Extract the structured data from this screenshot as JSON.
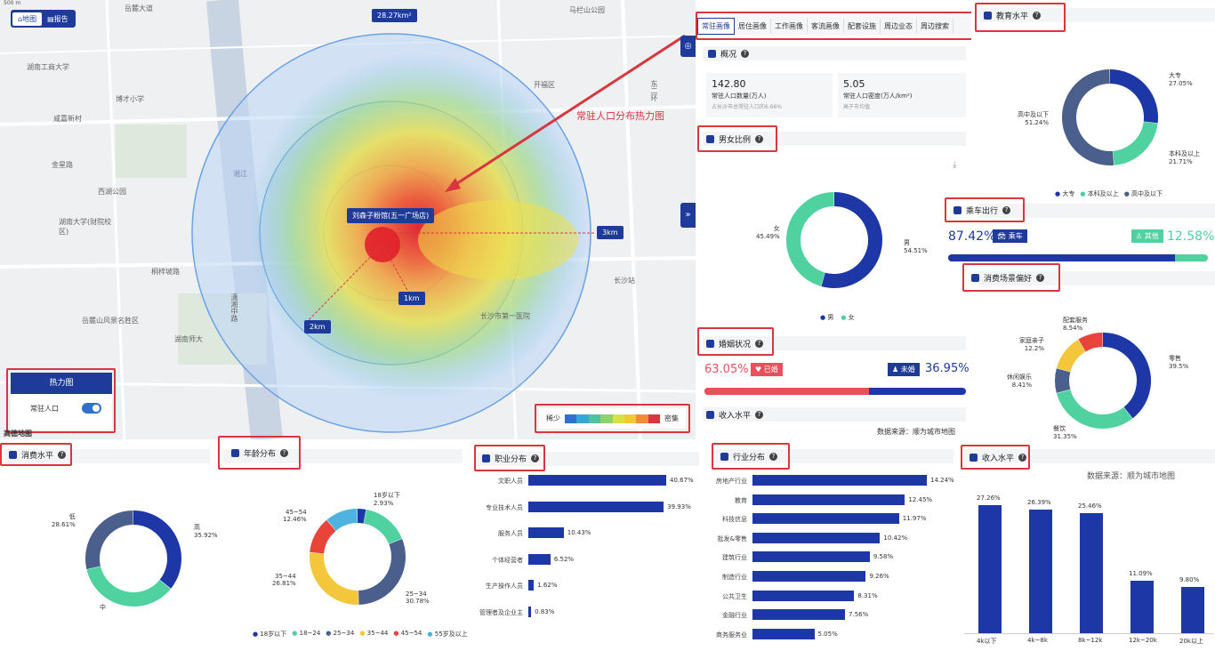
{
  "map": {
    "mode_tabs": [
      "地图",
      "报告"
    ],
    "area_label": "28.27km²",
    "store_label": "刘森子粉馆(五一广场店)",
    "ring_labels": [
      "1km",
      "2km",
      "3km"
    ],
    "annotation": "常驻人口分布热力图",
    "heat_panel_title": "热力图",
    "heat_toggle_label": "常驻人口",
    "legend_low": "稀少",
    "legend_high": "密集",
    "legend_colors": [
      "#2f6fd0",
      "#34a7d8",
      "#4fc3a0",
      "#8ed26b",
      "#d9e04a",
      "#f3c63b",
      "#f08c38",
      "#d9363e"
    ],
    "places": [
      "岳麓大道",
      "湖南工商大学",
      "博才小学",
      "咸嘉新村",
      "金星路",
      "西湖公园",
      "湖南大学(财院校区)",
      "桐梓坡路",
      "湘江",
      "湖南师大",
      "长沙站",
      "潇湘中路",
      "长沙市第一医院",
      "东二环",
      "马栏山公园",
      "岳麓山风景名胜区",
      "开福区"
    ],
    "watermark": "高德地图"
  },
  "tabs": [
    "常驻画像",
    "居住画像",
    "工作画像",
    "客流画像",
    "配套设施",
    "周边业态",
    "周边搜索"
  ],
  "overview": {
    "title": "概况",
    "pop_value": "142.80",
    "pop_label": "常驻人口数量(万人)",
    "pop_sub": "占长沙市总常驻人口的6.66%",
    "density_value": "5.05",
    "density_label": "常驻人口密度(万人/km²)",
    "density_sub": "高于市均值"
  },
  "gender": {
    "title": "男女比例",
    "male_label": "男",
    "male_value": "54.51%",
    "female_label": "女",
    "female_value": "45.49%",
    "male_pct": 54.51,
    "female_pct": 45.49,
    "colors": {
      "male": "#1d37a6",
      "female": "#4fd1a0"
    }
  },
  "marriage": {
    "title": "婚姻状况",
    "married_value": "63.05%",
    "married_label": "已婚",
    "married_pct": 63.05,
    "single_value": "36.95%",
    "single_label": "未婚"
  },
  "income_small": {
    "title": "收入水平"
  },
  "source_note": "数据来源：顺为城市地图",
  "education": {
    "title": "教育水平",
    "items": [
      {
        "label": "大专",
        "value": "27.05%",
        "pct": 27.05,
        "color": "#1d37a6"
      },
      {
        "label": "本科及以上",
        "value": "21.71%",
        "pct": 21.71,
        "color": "#4fd1a0"
      },
      {
        "label": "高中及以下",
        "value": "51.24%",
        "pct": 51.24,
        "color": "#4b5f8c"
      }
    ]
  },
  "commute": {
    "title": "乘车出行",
    "car_value": "87.42%",
    "car_label": "乘车",
    "car_pct": 87.42,
    "walk_label": "其他",
    "walk_value": "12.58%"
  },
  "scene": {
    "title": "消费场景偏好",
    "items": [
      {
        "label": "零售",
        "value": "39.5%",
        "pct": 39.5,
        "color": "#1d37a6"
      },
      {
        "label": "餐饮",
        "value": "31.35%",
        "pct": 31.35,
        "color": "#4fd1a0"
      },
      {
        "label": "休闲娱乐",
        "value": "8.41%",
        "pct": 8.41,
        "color": "#4b5f8c"
      },
      {
        "label": "家庭亲子",
        "value": "12.2%",
        "pct": 12.2,
        "color": "#f3c63b"
      },
      {
        "label": "配套服务",
        "value": "8.54%",
        "pct": 8.54,
        "color": "#e8443a"
      }
    ]
  },
  "consume": {
    "title": "消费水平",
    "items": [
      {
        "label": "高",
        "value": "35.92%",
        "pct": 35.92,
        "color": "#1d37a6"
      },
      {
        "label": "中",
        "value": "",
        "pct": 35.47,
        "color": "#4fd1a0"
      },
      {
        "label": "低",
        "value": "28.61%",
        "pct": 28.61,
        "color": "#4b5f8c"
      }
    ]
  },
  "age": {
    "title": "年龄分布",
    "items": [
      {
        "label": "18岁以下",
        "value": "2.93%",
        "pct": 2.93,
        "color": "#1d37a6"
      },
      {
        "label": "18~24",
        "value": "",
        "pct": 16.01,
        "color": "#4fd1a0"
      },
      {
        "label": "25~34",
        "value": "30.78%",
        "pct": 30.78,
        "color": "#4b5f8c"
      },
      {
        "label": "35~44",
        "value": "26.81%",
        "pct": 26.81,
        "color": "#f3c63b"
      },
      {
        "label": "45~54",
        "value": "12.46%",
        "pct": 12.46,
        "color": "#e8443a"
      },
      {
        "label": "55岁及以上",
        "value": "",
        "pct": 11.01,
        "color": "#4fb3e0"
      }
    ]
  },
  "occupation": {
    "title": "职业分布",
    "items": [
      {
        "label": "文职人员",
        "value": "40.67%",
        "pct": 40.67
      },
      {
        "label": "专业技术人员",
        "value": "39.93%",
        "pct": 39.93
      },
      {
        "label": "服务人员",
        "value": "10.43%",
        "pct": 10.43
      },
      {
        "label": "个体经营者",
        "value": "6.52%",
        "pct": 6.52
      },
      {
        "label": "生产操作人员",
        "value": "1.62%",
        "pct": 1.62
      },
      {
        "label": "管理者及企业主",
        "value": "0.83%",
        "pct": 0.83
      }
    ]
  },
  "industry": {
    "title": "行业分布",
    "items": [
      {
        "label": "房地产行业",
        "value": "14.24%",
        "pct": 14.24
      },
      {
        "label": "教育",
        "value": "12.45%",
        "pct": 12.45
      },
      {
        "label": "科技信息",
        "value": "11.97%",
        "pct": 11.97
      },
      {
        "label": "批发&零售",
        "value": "10.42%",
        "pct": 10.42
      },
      {
        "label": "建筑行业",
        "value": "9.58%",
        "pct": 9.58
      },
      {
        "label": "制造行业",
        "value": "9.26%",
        "pct": 9.26
      },
      {
        "label": "公共卫生",
        "value": "8.31%",
        "pct": 8.31
      },
      {
        "label": "金融行业",
        "value": "7.56%",
        "pct": 7.56
      },
      {
        "label": "商务服务业",
        "value": "5.05%",
        "pct": 5.05
      }
    ]
  },
  "income": {
    "title": "收入水平",
    "source": "数据来源：顺为城市地图",
    "chart_data": {
      "type": "bar",
      "categories": [
        "4k以下",
        "4k~8k",
        "8k~12k",
        "12k~20k",
        "20k以上"
      ],
      "values": [
        27.26,
        26.39,
        25.46,
        11.09,
        9.8
      ],
      "value_labels": [
        "27.26%",
        "26.39%",
        "25.46%",
        "11.09%",
        "9.80%"
      ],
      "ylim": [
        0,
        28
      ]
    }
  }
}
